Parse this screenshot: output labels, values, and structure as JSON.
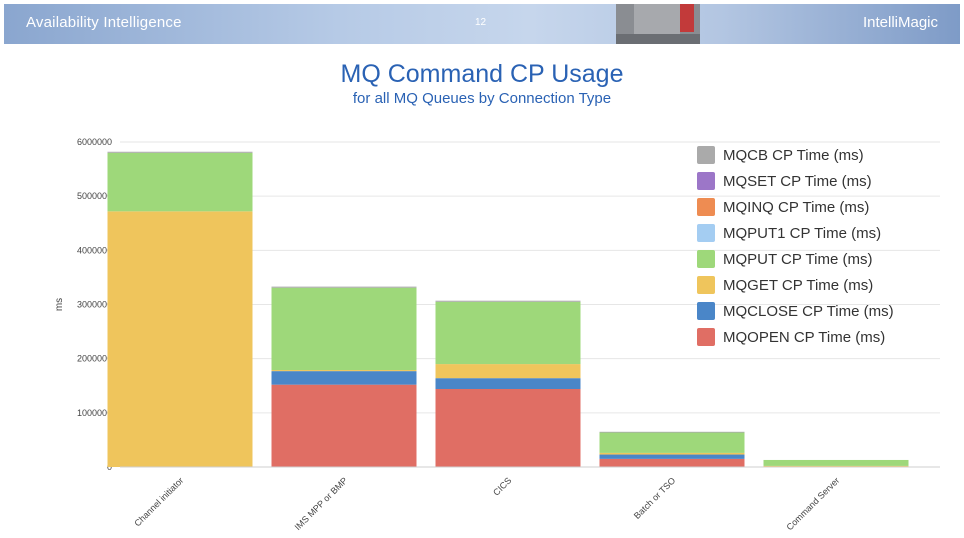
{
  "header": {
    "left_title": "Availability Intelligence",
    "page_number": "12",
    "brand": "IntelliMagic"
  },
  "colors": {
    "header_text": "#ffffff",
    "title": "#2a62b4",
    "grid": "#e6e6e6",
    "axis_text": "#444444"
  },
  "chart_data": {
    "type": "bar",
    "stacked": true,
    "title": "MQ Command CP Usage",
    "subtitle": "for all MQ Queues by Connection Type",
    "ylabel": "ms",
    "xlabel": "",
    "ylim": [
      0,
      6000000
    ],
    "yticks": [
      "0",
      "1000000",
      "2000000",
      "3000000",
      "4000000",
      "5000000",
      "6000000"
    ],
    "grid": true,
    "legend_position": "top-right",
    "categories": [
      "Channel initiator",
      "IMS MPP or BMP",
      "CICS",
      "Batch or TSO",
      "Command Server"
    ],
    "series": [
      {
        "name": "MQOPEN CP Time (ms)",
        "color": "#e06e64",
        "values": [
          0,
          1520000,
          1440000,
          150000,
          0
        ]
      },
      {
        "name": "MQCLOSE CP Time (ms)",
        "color": "#4a86c8",
        "values": [
          0,
          250000,
          200000,
          80000,
          0
        ]
      },
      {
        "name": "MQGET CP Time (ms)",
        "color": "#efc55c",
        "values": [
          4720000,
          20000,
          260000,
          30000,
          20000
        ]
      },
      {
        "name": "MQPUT CP Time (ms)",
        "color": "#9ed87a",
        "values": [
          1080000,
          1520000,
          1150000,
          380000,
          110000
        ]
      },
      {
        "name": "MQPUT1 CP Time (ms)",
        "color": "#a4cdf2",
        "values": [
          0,
          0,
          0,
          0,
          0
        ]
      },
      {
        "name": "MQINQ CP Time (ms)",
        "color": "#ee8c52",
        "values": [
          0,
          0,
          0,
          0,
          0
        ]
      },
      {
        "name": "MQSET CP Time (ms)",
        "color": "#9c76c8",
        "values": [
          0,
          0,
          0,
          0,
          0
        ]
      },
      {
        "name": "MQCB CP Time (ms)",
        "color": "#aaaaaa",
        "values": [
          20000,
          20000,
          20000,
          10000,
          0
        ]
      }
    ],
    "legend_order": [
      7,
      6,
      5,
      4,
      3,
      2,
      1,
      0
    ]
  }
}
